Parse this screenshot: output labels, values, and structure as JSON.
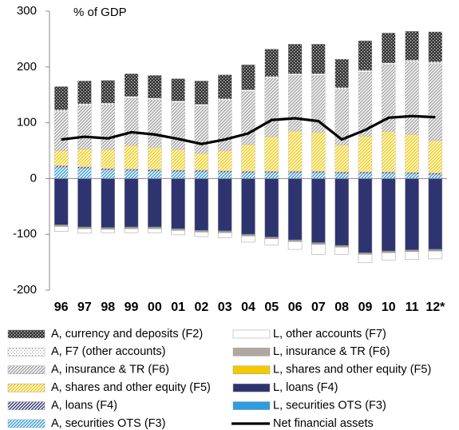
{
  "chart_data": {
    "type": "bar",
    "stacked": true,
    "y_label": "% of GDP",
    "categories": [
      "96",
      "97",
      "98",
      "99",
      "00",
      "01",
      "02",
      "03",
      "04",
      "05",
      "06",
      "07",
      "08",
      "09",
      "10",
      "11",
      "12*"
    ],
    "ylim": [
      -200,
      300
    ],
    "yticks": [
      -200,
      -100,
      0,
      100,
      200,
      300
    ],
    "series": [
      {
        "name": "A, currency and deposits (F2)",
        "color": "#333333",
        "pattern": "checker",
        "values": [
          42,
          41,
          41,
          41,
          41,
          40,
          42,
          43,
          45,
          49,
          53,
          53,
          51,
          53,
          54,
          52,
          54
        ]
      },
      {
        "name": "A, F7 (other accounts)",
        "color": "#999999",
        "pattern": "dots",
        "values": [
          3,
          3,
          3,
          3,
          3,
          3,
          3,
          3,
          3,
          3,
          3,
          3,
          3,
          3,
          3,
          3,
          3
        ]
      },
      {
        "name": "A, insurance & TR (F6)",
        "color": "#a0a0a0",
        "pattern": "hatch",
        "values": [
          70,
          78,
          80,
          85,
          85,
          84,
          85,
          90,
          95,
          105,
          100,
          102,
          100,
          115,
          120,
          130,
          138
        ]
      },
      {
        "name": "A, shares and other equity (F5)",
        "color": "#f5c800",
        "pattern": "hatch",
        "values": [
          27,
          32,
          34,
          42,
          40,
          37,
          30,
          36,
          48,
          62,
          72,
          70,
          48,
          64,
          72,
          68,
          58
        ]
      },
      {
        "name": "A, loans (F4)",
        "color": "#2e3470",
        "pattern": "hatch",
        "values": [
          3,
          3,
          3,
          3,
          3,
          3,
          3,
          3,
          3,
          3,
          3,
          3,
          3,
          3,
          3,
          3,
          3
        ]
      },
      {
        "name": "A, securities OTS (F3)",
        "color": "#2f9be0",
        "pattern": "hatch",
        "values": [
          20,
          18,
          15,
          14,
          13,
          12,
          12,
          11,
          10,
          10,
          10,
          10,
          9,
          9,
          9,
          8,
          7
        ]
      },
      {
        "name": "L, other accounts (F7)",
        "color": "#ffffff",
        "pattern": "solid",
        "values": [
          -9,
          -8,
          -6,
          -7,
          -7,
          -8,
          -8,
          -9,
          -11,
          -11,
          -14,
          -18,
          -13,
          -15,
          -13,
          -14,
          -14
        ]
      },
      {
        "name": "L, insurance & TR (F6)",
        "color": "#b0a89e",
        "pattern": "solid",
        "values": [
          -1,
          -1,
          -1,
          -1,
          -1,
          -1,
          -1,
          -1,
          -1,
          -1,
          -1,
          -1,
          -1,
          -1,
          -1,
          -1,
          -1
        ]
      },
      {
        "name": "L, shares and other equity (F5)",
        "color": "#f5c800",
        "pattern": "solid",
        "values": [
          -1,
          -1,
          -1,
          -1,
          -1,
          -1,
          -1,
          -1,
          -1,
          -1,
          -1,
          -1,
          -1,
          -1,
          -1,
          -1,
          -1
        ]
      },
      {
        "name": "L, loans (F4)",
        "color": "#2e3470",
        "pattern": "solid",
        "values": [
          -83,
          -87,
          -88,
          -87,
          -87,
          -90,
          -93,
          -94,
          -100,
          -105,
          -110,
          -115,
          -120,
          -133,
          -130,
          -128,
          -127
        ]
      },
      {
        "name": "L, securities OTS (F3)",
        "color": "#2f9be0",
        "pattern": "solid",
        "values": [
          -1,
          -1,
          -1,
          -1,
          -1,
          -1,
          -1,
          -1,
          -1,
          -1,
          -1,
          -1,
          -1,
          -1,
          -1,
          -1,
          -1
        ]
      },
      {
        "name": "Net financial assets",
        "color": "#000000",
        "type": "line",
        "values": [
          70,
          75,
          72,
          83,
          79,
          71,
          62,
          70,
          81,
          105,
          108,
          103,
          70,
          87,
          109,
          112,
          110
        ]
      }
    ]
  }
}
